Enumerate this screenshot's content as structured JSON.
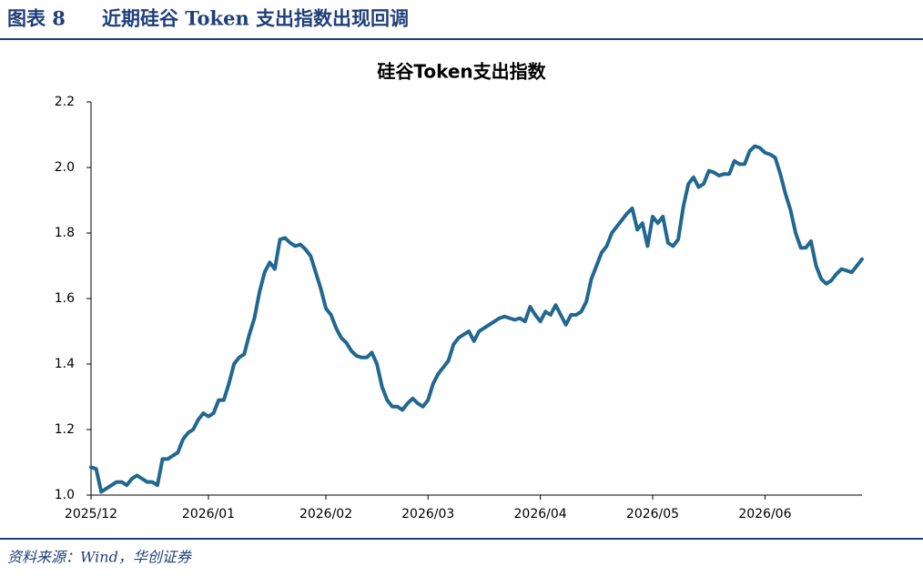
{
  "header": {
    "label": "图表 8",
    "title": "近期硅谷 Token 支出指数出现回调"
  },
  "source": "资料来源：Wind，华创证券",
  "chart_data": {
    "type": "line",
    "title": "硅谷Token支出指数",
    "categories": [
      "2025/12",
      null,
      null,
      null,
      null,
      null,
      null,
      null,
      null,
      null,
      null,
      null,
      null,
      null,
      null,
      null,
      null,
      null,
      null,
      null,
      null,
      null,
      null,
      "2026/01",
      null,
      null,
      null,
      null,
      null,
      null,
      null,
      null,
      null,
      null,
      null,
      null,
      null,
      null,
      null,
      null,
      null,
      null,
      null,
      null,
      null,
      null,
      "2026/02",
      null,
      null,
      null,
      null,
      null,
      null,
      null,
      null,
      null,
      null,
      null,
      null,
      null,
      null,
      null,
      null,
      null,
      null,
      null,
      "2026/03",
      null,
      null,
      null,
      null,
      null,
      null,
      null,
      null,
      null,
      null,
      null,
      null,
      null,
      null,
      null,
      null,
      null,
      null,
      null,
      null,
      null,
      "2026/04",
      null,
      null,
      null,
      null,
      null,
      null,
      null,
      null,
      null,
      null,
      null,
      null,
      null,
      null,
      null,
      null,
      null,
      null,
      null,
      null,
      null,
      "2026/05",
      null,
      null,
      null,
      null,
      null,
      null,
      null,
      null,
      null,
      null,
      null,
      null,
      null,
      null,
      null,
      null,
      null,
      null,
      null,
      null,
      null,
      "2026/06",
      null,
      null,
      null,
      null,
      null,
      null,
      null,
      null,
      null,
      null,
      null,
      null,
      null,
      null,
      null,
      null,
      null,
      null,
      null
    ],
    "values": [
      1.085,
      1.08,
      1.01,
      1.02,
      1.03,
      1.04,
      1.04,
      1.03,
      1.05,
      1.06,
      1.05,
      1.04,
      1.04,
      1.03,
      1.11,
      1.11,
      1.12,
      1.13,
      1.17,
      1.19,
      1.2,
      1.23,
      1.25,
      1.24,
      1.25,
      1.29,
      1.29,
      1.34,
      1.4,
      1.42,
      1.43,
      1.49,
      1.54,
      1.62,
      1.68,
      1.71,
      1.69,
      1.78,
      1.785,
      1.77,
      1.76,
      1.765,
      1.75,
      1.73,
      1.68,
      1.63,
      1.57,
      1.55,
      1.51,
      1.48,
      1.465,
      1.44,
      1.425,
      1.42,
      1.42,
      1.435,
      1.4,
      1.33,
      1.29,
      1.27,
      1.27,
      1.26,
      1.28,
      1.295,
      1.28,
      1.27,
      1.29,
      1.34,
      1.37,
      1.39,
      1.41,
      1.46,
      1.48,
      1.49,
      1.5,
      1.47,
      1.5,
      1.51,
      1.52,
      1.53,
      1.54,
      1.545,
      1.54,
      1.535,
      1.54,
      1.53,
      1.575,
      1.55,
      1.53,
      1.56,
      1.55,
      1.58,
      1.55,
      1.52,
      1.55,
      1.55,
      1.56,
      1.59,
      1.66,
      1.7,
      1.74,
      1.76,
      1.8,
      1.82,
      1.84,
      1.86,
      1.875,
      1.81,
      1.83,
      1.76,
      1.85,
      1.83,
      1.85,
      1.77,
      1.76,
      1.78,
      1.88,
      1.95,
      1.97,
      1.94,
      1.95,
      1.99,
      1.985,
      1.975,
      1.98,
      1.98,
      2.02,
      2.01,
      2.01,
      2.05,
      2.065,
      2.06,
      2.045,
      2.04,
      2.03,
      1.98,
      1.92,
      1.87,
      1.8,
      1.755,
      1.755,
      1.775,
      1.7,
      1.66,
      1.645,
      1.655,
      1.675,
      1.69,
      1.685,
      1.68,
      1.7,
      1.72
    ],
    "color": "#21678f",
    "ylim": [
      1,
      2.2
    ],
    "yticks": [
      {
        "value": 1,
        "label": "1.0"
      },
      1.2,
      1.4,
      1.6,
      1.8,
      {
        "value": 2,
        "label": "2.0"
      },
      2.2
    ],
    "grid": false
  }
}
